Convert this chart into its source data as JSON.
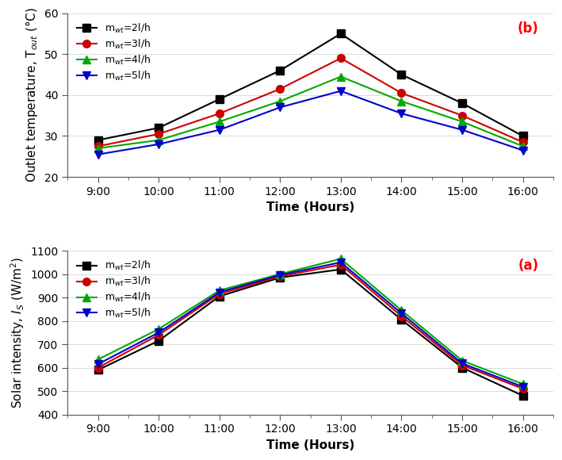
{
  "time_labels": [
    "9:00",
    "10:00",
    "11:00",
    "12:00",
    "13:00",
    "14:00",
    "15:00",
    "16:00"
  ],
  "time_values": [
    9,
    10,
    11,
    12,
    13,
    14,
    15,
    16
  ],
  "top_chart": {
    "ylabel": "Outlet temperature, T$_{out}$ (°C)",
    "xlabel": "Time (Hours)",
    "ylim": [
      20,
      60
    ],
    "yticks": [
      20,
      30,
      40,
      50,
      60
    ],
    "label": "(b)",
    "series": [
      {
        "label": "m$_{wt}$=2l/h",
        "color": "#000000",
        "marker": "s",
        "marker_color": "#000000",
        "values": [
          29,
          32,
          39,
          46,
          55,
          45,
          38,
          30
        ]
      },
      {
        "label": "m$_{wt}$=3l/h",
        "color": "#cc0000",
        "marker": "o",
        "marker_color": "#cc0000",
        "values": [
          27.5,
          30.5,
          35.5,
          41.5,
          49,
          40.5,
          35,
          28.5
        ]
      },
      {
        "label": "m$_{wt}$=4l/h",
        "color": "#00aa00",
        "marker": "^",
        "marker_color": "#00aa00",
        "values": [
          27,
          29,
          33.5,
          38.5,
          44.5,
          38.5,
          33.5,
          27.5
        ]
      },
      {
        "label": "m$_{wt}$=5l/h",
        "color": "#0000cc",
        "marker": "v",
        "marker_color": "#0000cc",
        "values": [
          25.5,
          28,
          31.5,
          37,
          41,
          35.5,
          31.5,
          26.5
        ]
      }
    ]
  },
  "bottom_chart": {
    "ylabel": "Solar intensity, $I_S$ (W/m$^2$)",
    "xlabel": "Time (Hours)",
    "ylim": [
      400,
      1100
    ],
    "yticks": [
      400,
      500,
      600,
      700,
      800,
      900,
      1000,
      1100
    ],
    "label": "(a)",
    "series": [
      {
        "label": "m$_{wt}$=2l/h",
        "color": "#000000",
        "marker": "s",
        "marker_color": "#000000",
        "values": [
          590,
          715,
          905,
          985,
          1020,
          805,
          600,
          480
        ]
      },
      {
        "label": "m$_{wt}$=3l/h",
        "color": "#cc0000",
        "marker": "o",
        "marker_color": "#cc0000",
        "values": [
          600,
          740,
          915,
          990,
          1040,
          820,
          610,
          510
        ]
      },
      {
        "label": "m$_{wt}$=4l/h",
        "color": "#00aa00",
        "marker": "^",
        "marker_color": "#00aa00",
        "values": [
          635,
          765,
          930,
          1000,
          1065,
          845,
          630,
          530
        ]
      },
      {
        "label": "m$_{wt}$=5l/h",
        "color": "#0000cc",
        "marker": "v",
        "marker_color": "#0000cc",
        "values": [
          615,
          750,
          922,
          996,
          1050,
          832,
          618,
          518
        ]
      }
    ]
  },
  "background_color": "#ffffff",
  "grid_color": "#cccccc",
  "marker_size": 7,
  "linewidth": 1.5,
  "legend_fontsize": 9,
  "axis_label_fontsize": 11,
  "tick_fontsize": 10,
  "panel_label_fontsize": 12
}
